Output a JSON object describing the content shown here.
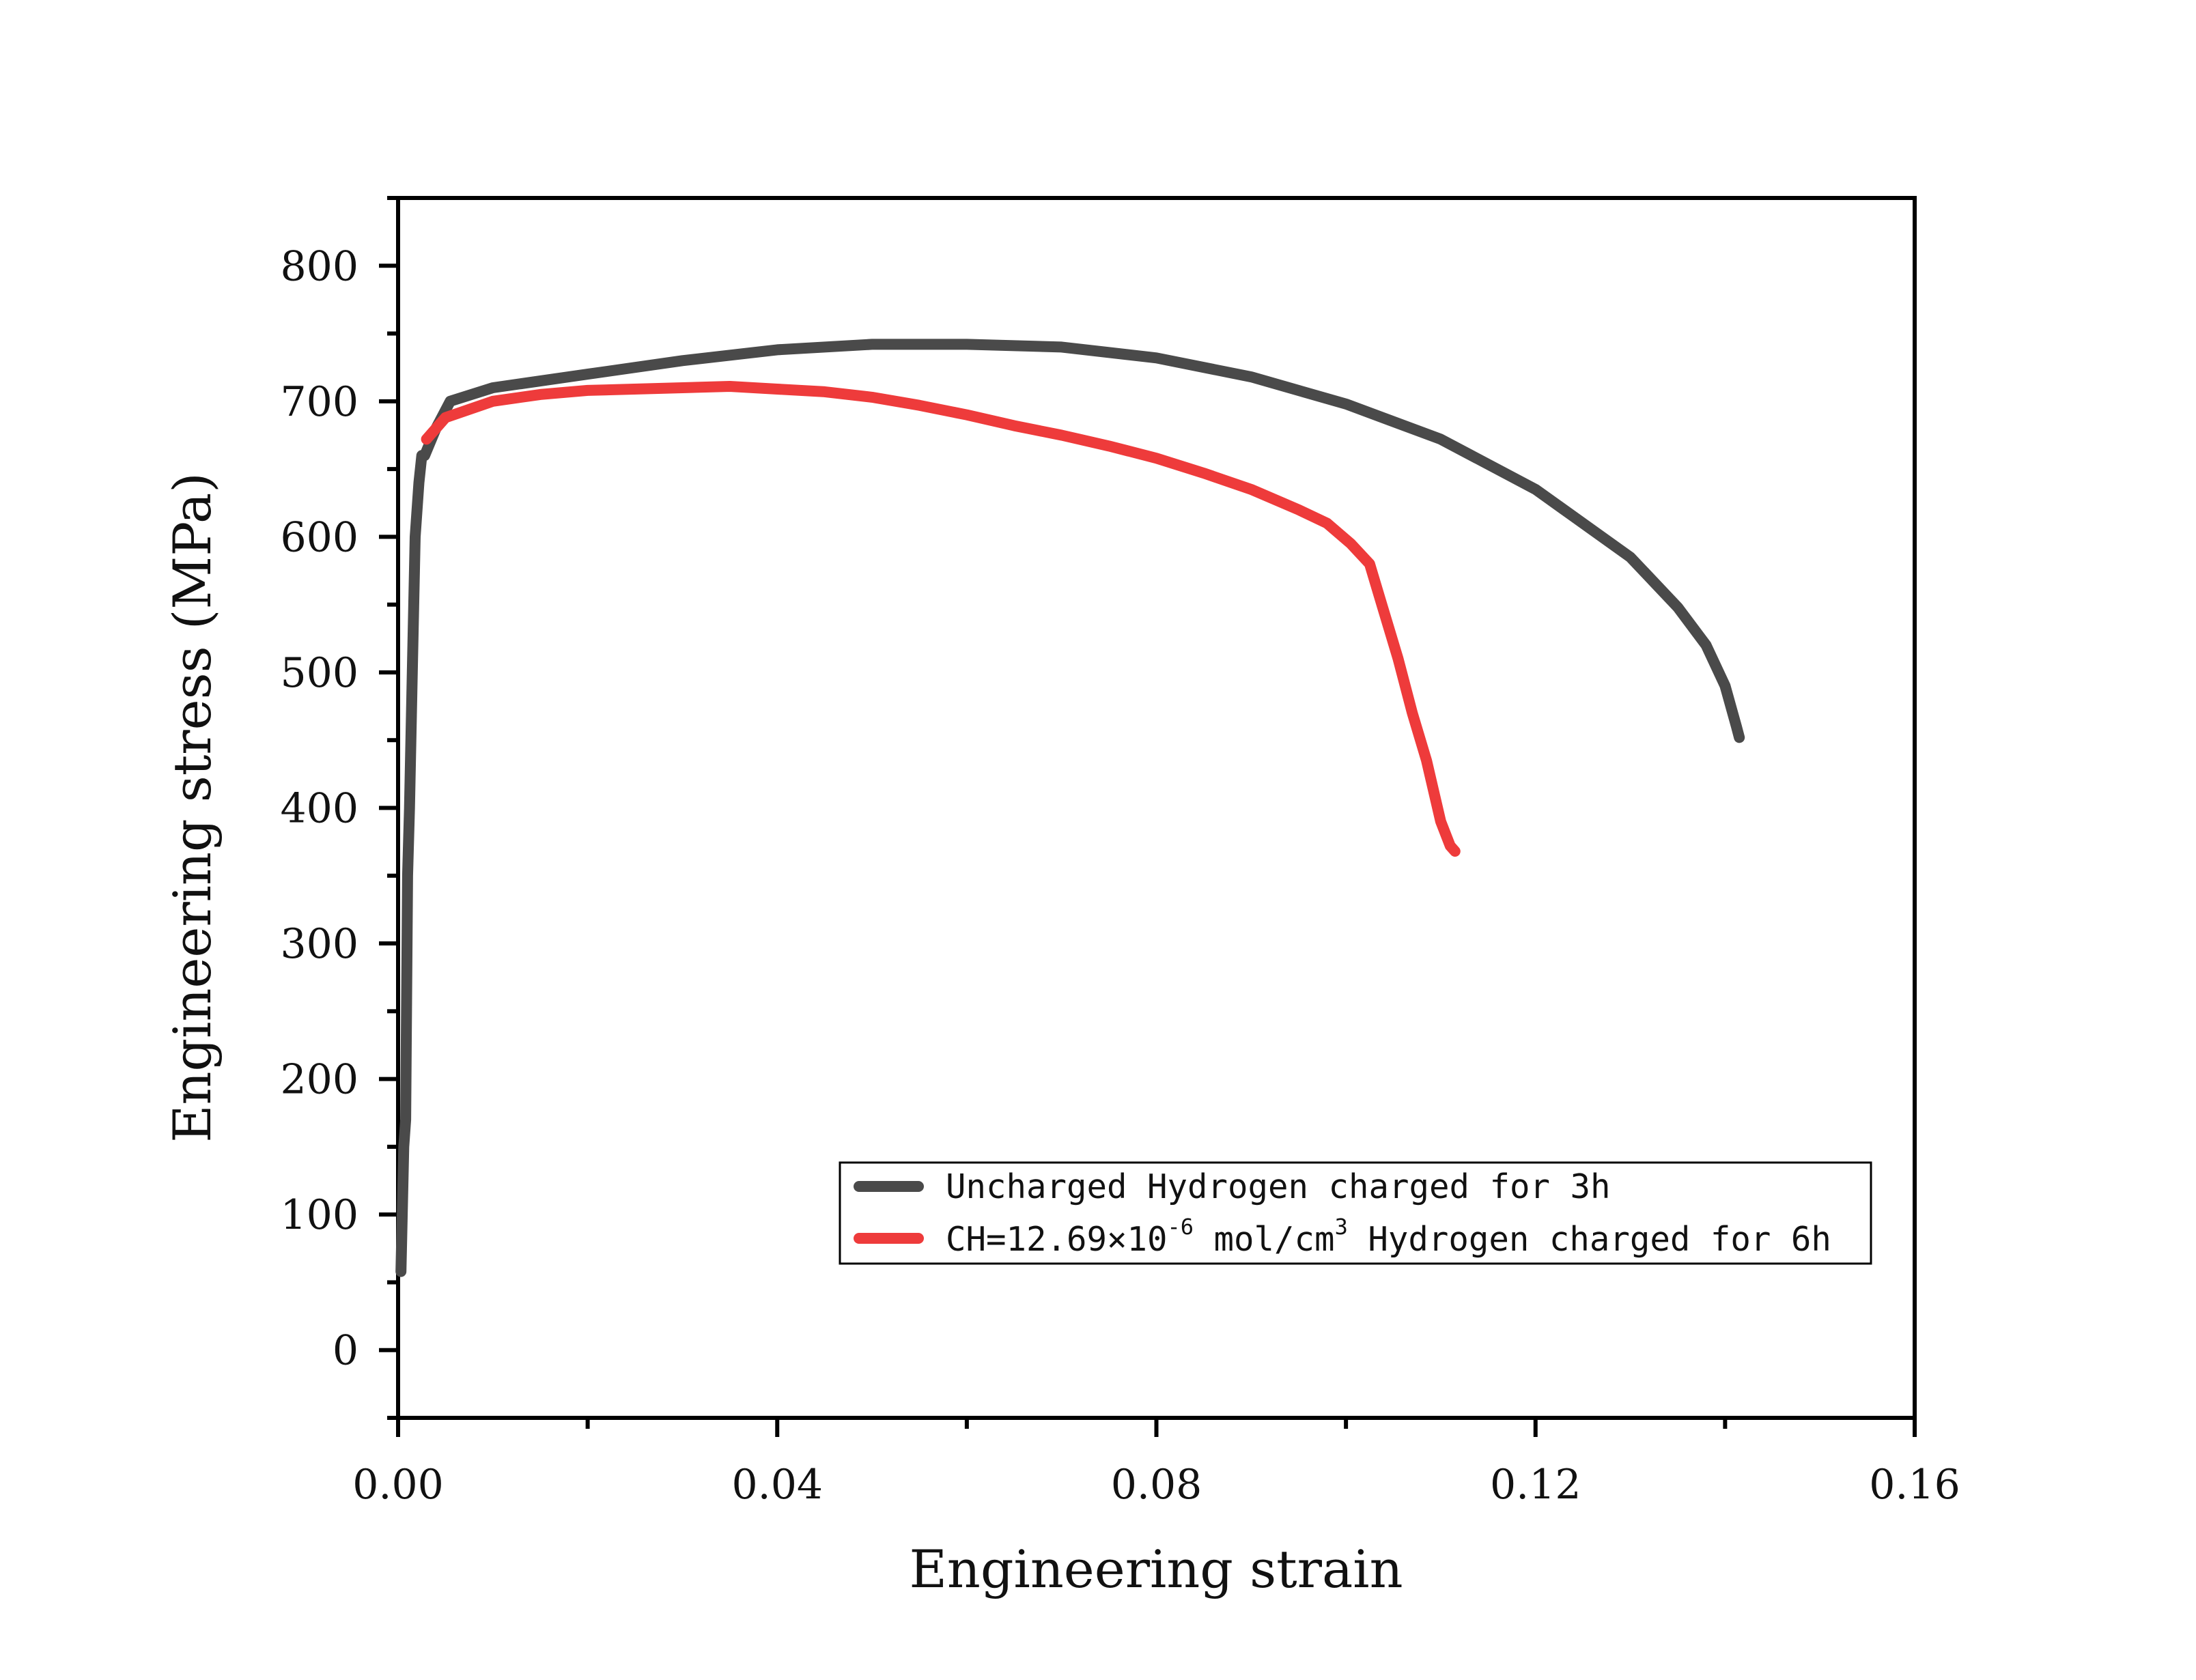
{
  "chart_data": {
    "type": "line",
    "xlabel": "Engineering strain",
    "ylabel": "Engineering stress (MPa)",
    "xlim": [
      0,
      0.16
    ],
    "ylim": [
      -50,
      850
    ],
    "x_ticks": [
      0,
      0.04,
      0.08,
      0.12,
      0.16
    ],
    "x_tick_labels": [
      "0.00",
      "0.04",
      "0.08",
      "0.12",
      "0.16"
    ],
    "y_ticks": [
      0,
      100,
      200,
      300,
      400,
      500,
      600,
      700,
      800
    ],
    "y_tick_labels": [
      "0",
      "100",
      "200",
      "300",
      "400",
      "500",
      "600",
      "700",
      "800"
    ],
    "grid": false,
    "legend_position": "bottom-right",
    "legend": {
      "series1_label": "Uncharged Hydrogen charged for 3h",
      "series2_prefix": "CH=12.69×10",
      "series2_exp1": "-6",
      "series2_mid": " mol/cm",
      "series2_exp2": "3",
      "series2_suffix": " Hydrogen charged for 6h"
    },
    "series": [
      {
        "color": "#4a4a4a",
        "points": [
          [
            0.0003,
            58
          ],
          [
            0.0006,
            150
          ],
          [
            0.0008,
            170
          ],
          [
            0.001,
            350
          ],
          [
            0.0012,
            400
          ],
          [
            0.0015,
            500
          ],
          [
            0.0018,
            600
          ],
          [
            0.0022,
            640
          ],
          [
            0.0025,
            660
          ],
          [
            0.0028,
            660
          ],
          [
            0.004,
            680
          ],
          [
            0.0055,
            700
          ],
          [
            0.01,
            710
          ],
          [
            0.02,
            720
          ],
          [
            0.03,
            730
          ],
          [
            0.04,
            738
          ],
          [
            0.05,
            742
          ],
          [
            0.06,
            742
          ],
          [
            0.07,
            740
          ],
          [
            0.08,
            732
          ],
          [
            0.09,
            718
          ],
          [
            0.1,
            698
          ],
          [
            0.11,
            672
          ],
          [
            0.12,
            635
          ],
          [
            0.13,
            585
          ],
          [
            0.135,
            548
          ],
          [
            0.138,
            520
          ],
          [
            0.14,
            490
          ],
          [
            0.1412,
            460
          ],
          [
            0.1415,
            452
          ]
        ]
      },
      {
        "color": "#ee3b3b",
        "points": [
          [
            0.003,
            672
          ],
          [
            0.005,
            688
          ],
          [
            0.01,
            700
          ],
          [
            0.015,
            705
          ],
          [
            0.02,
            708
          ],
          [
            0.03,
            710
          ],
          [
            0.035,
            711
          ],
          [
            0.04,
            709
          ],
          [
            0.045,
            707
          ],
          [
            0.05,
            703
          ],
          [
            0.055,
            697
          ],
          [
            0.06,
            690
          ],
          [
            0.065,
            682
          ],
          [
            0.07,
            675
          ],
          [
            0.075,
            667
          ],
          [
            0.08,
            658
          ],
          [
            0.085,
            647
          ],
          [
            0.09,
            635
          ],
          [
            0.095,
            620
          ],
          [
            0.098,
            610
          ],
          [
            0.1005,
            595
          ],
          [
            0.1025,
            580
          ],
          [
            0.104,
            545
          ],
          [
            0.1055,
            510
          ],
          [
            0.107,
            470
          ],
          [
            0.1085,
            435
          ],
          [
            0.11,
            390
          ],
          [
            0.111,
            372
          ],
          [
            0.1115,
            368
          ]
        ]
      }
    ]
  }
}
